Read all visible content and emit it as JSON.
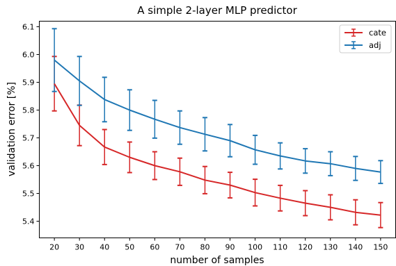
{
  "chart_data": {
    "type": "line",
    "title": "A simple 2-layer MLP predictor",
    "xlabel": "number of samples",
    "ylabel": "validation error [%]",
    "x": [
      20,
      30,
      40,
      50,
      60,
      70,
      80,
      90,
      100,
      110,
      120,
      130,
      140,
      150
    ],
    "x_ticks": [
      "20",
      "30",
      "40",
      "50",
      "60",
      "70",
      "80",
      "90",
      "100",
      "110",
      "120",
      "130",
      "140",
      "150"
    ],
    "y_ticks": [
      "5.4",
      "5.5",
      "5.6",
      "5.7",
      "5.8",
      "5.9",
      "6.0",
      "6.1"
    ],
    "xlim": [
      14,
      156
    ],
    "ylim": [
      5.34,
      6.12
    ],
    "grid": false,
    "legend_position": "top-right",
    "error_bars": true,
    "series": [
      {
        "name": "cate",
        "color": "#d62728",
        "values": [
          5.895,
          5.745,
          5.667,
          5.63,
          5.6,
          5.578,
          5.548,
          5.53,
          5.503,
          5.483,
          5.465,
          5.45,
          5.432,
          5.422
        ],
        "errors": [
          0.098,
          0.073,
          0.063,
          0.055,
          0.05,
          0.049,
          0.049,
          0.046,
          0.048,
          0.046,
          0.045,
          0.045,
          0.045,
          0.045
        ]
      },
      {
        "name": "adj",
        "color": "#1f77b4",
        "values": [
          5.98,
          5.905,
          5.838,
          5.8,
          5.767,
          5.737,
          5.713,
          5.69,
          5.657,
          5.635,
          5.617,
          5.607,
          5.59,
          5.577
        ],
        "errors": [
          0.113,
          0.088,
          0.08,
          0.073,
          0.068,
          0.06,
          0.06,
          0.058,
          0.052,
          0.047,
          0.044,
          0.043,
          0.043,
          0.041
        ]
      }
    ]
  }
}
